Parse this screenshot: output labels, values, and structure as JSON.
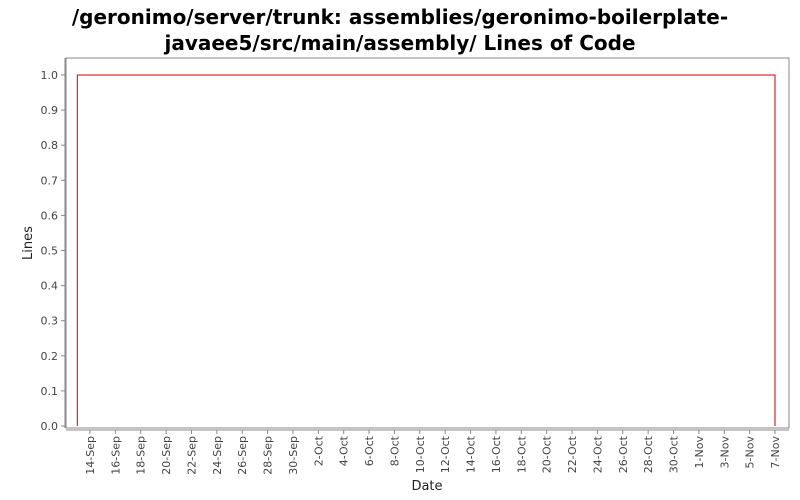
{
  "chart_data": {
    "type": "line",
    "title_lines": [
      "/geronimo/server/trunk: assemblies/geronimo-boilerplate-",
      "javaee5/src/main/assembly/ Lines of Code"
    ],
    "xlabel": "Date",
    "ylabel": "Lines",
    "ylim": [
      0,
      1.0
    ],
    "y_ticks": [
      "0.0",
      "0.1",
      "0.2",
      "0.3",
      "0.4",
      "0.5",
      "0.6",
      "0.7",
      "0.8",
      "0.9",
      "1.0"
    ],
    "x_ticks": [
      "14-Sep",
      "16-Sep",
      "18-Sep",
      "20-Sep",
      "22-Sep",
      "24-Sep",
      "26-Sep",
      "28-Sep",
      "30-Sep",
      "2-Oct",
      "4-Oct",
      "6-Oct",
      "8-Oct",
      "10-Oct",
      "12-Oct",
      "14-Oct",
      "16-Oct",
      "18-Oct",
      "20-Oct",
      "22-Oct",
      "24-Oct",
      "26-Oct",
      "28-Oct",
      "30-Oct",
      "1-Nov",
      "3-Nov",
      "5-Nov",
      "7-Nov"
    ],
    "series": [
      {
        "color": "#cc0000",
        "points": [
          {
            "x": "13-Sep",
            "y": 0.0
          },
          {
            "x": "13-Sep",
            "y": 1.0
          },
          {
            "x": "7-Nov",
            "y": 1.0
          },
          {
            "x": "7-Nov",
            "y": 0.0
          }
        ]
      }
    ],
    "grid": false,
    "colors": {
      "plot_border": "#888888",
      "axis": "#888888",
      "text": "#444444"
    }
  }
}
